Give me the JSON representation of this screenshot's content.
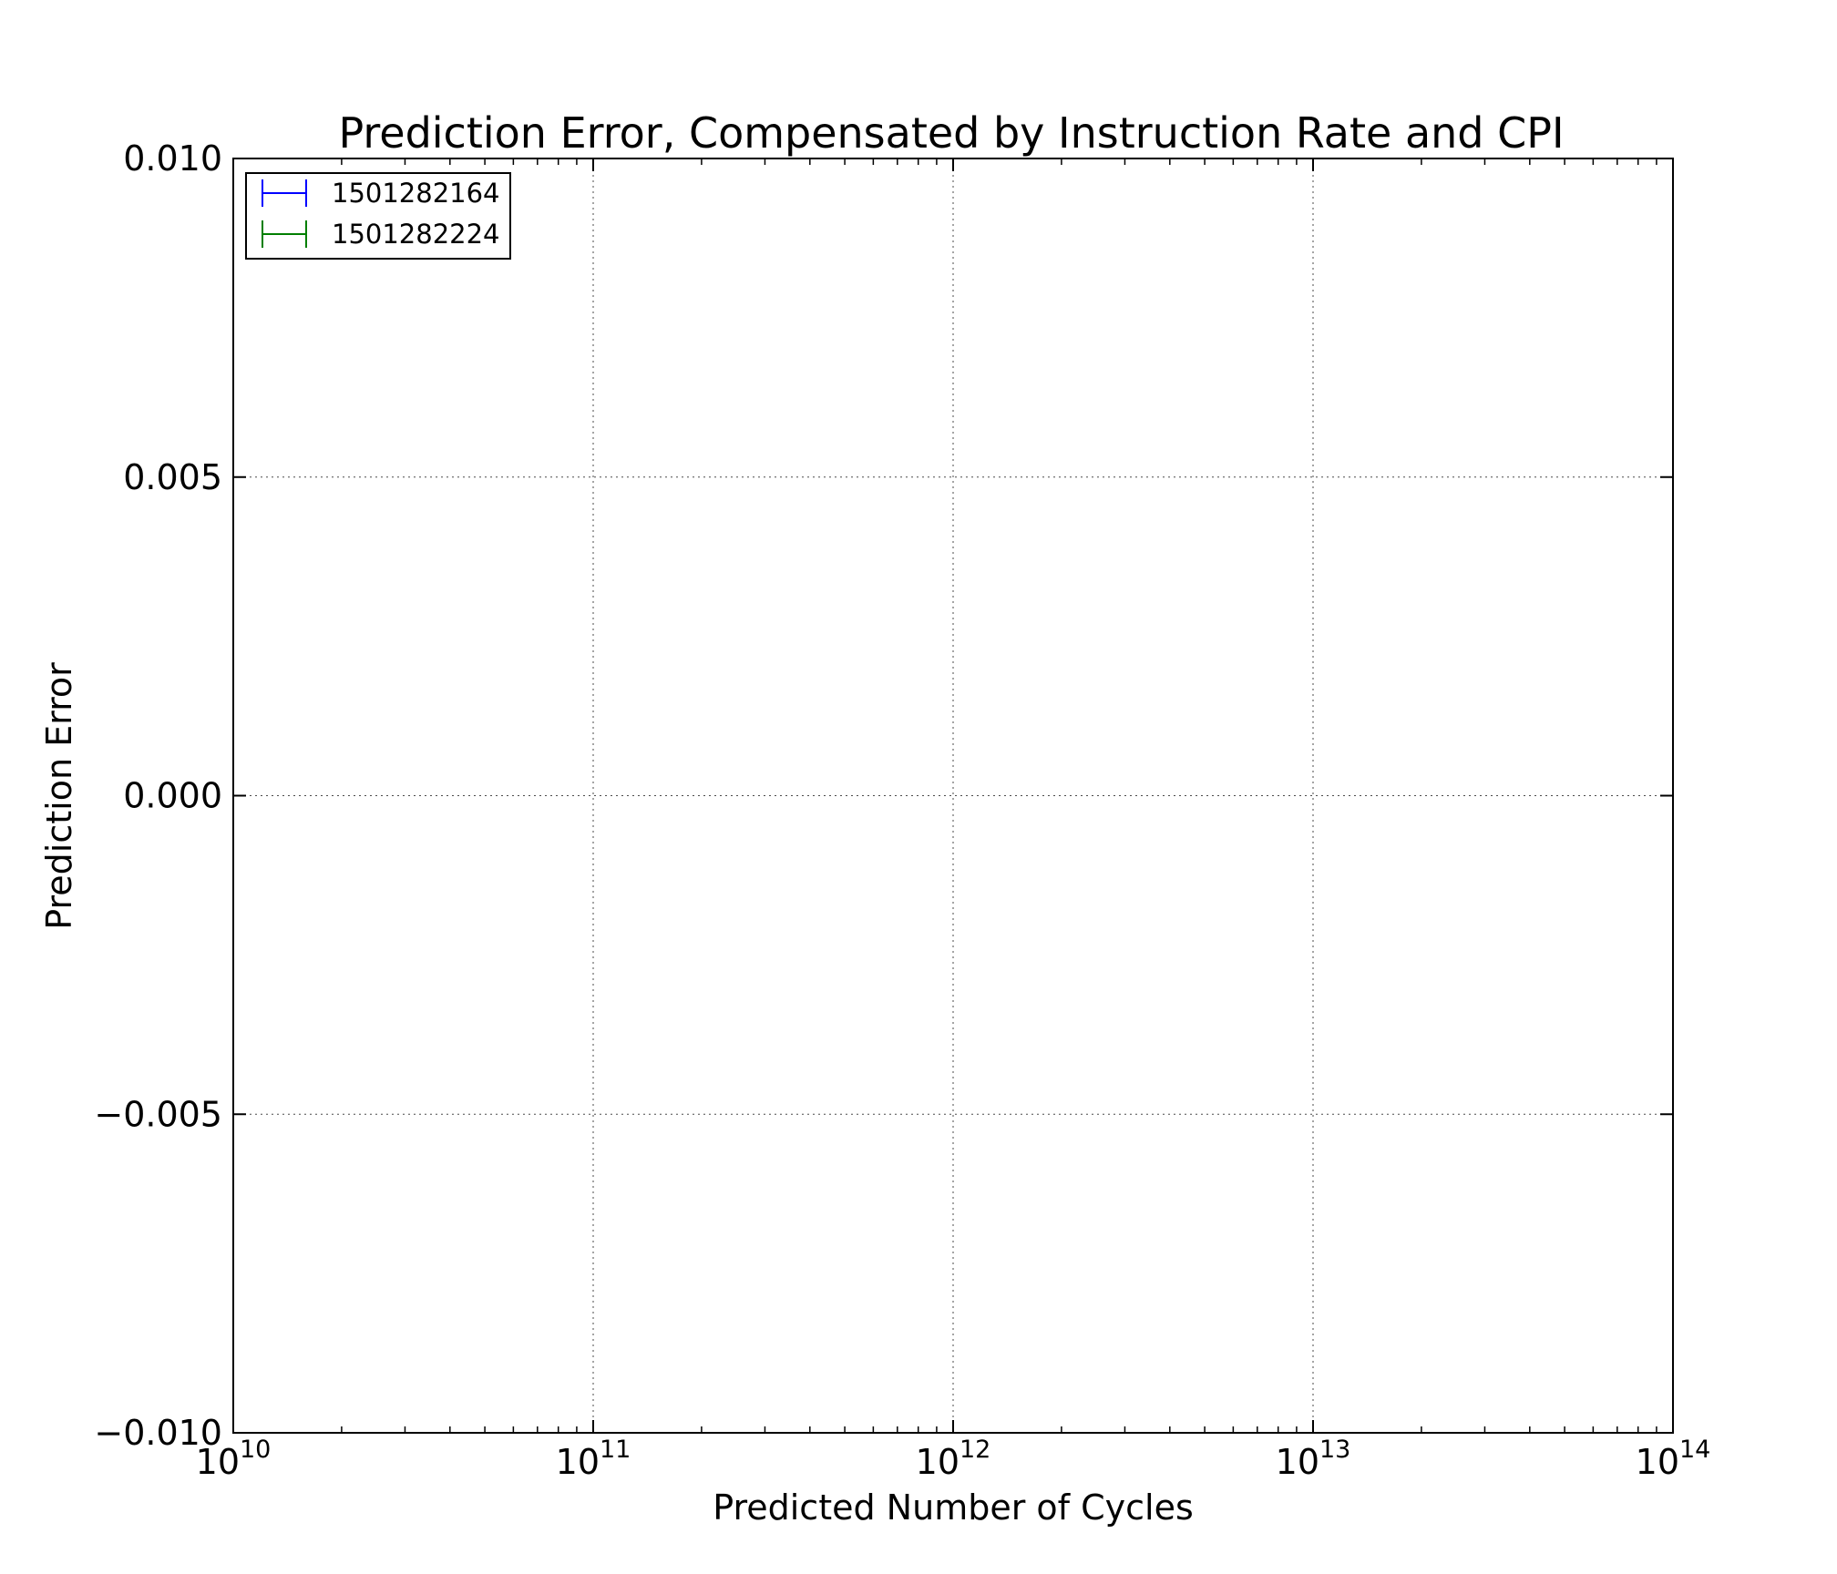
{
  "chart_data": {
    "type": "scatter",
    "title": "Prediction Error, Compensated by Instruction Rate and CPI",
    "xlabel": "Predicted Number of Cycles",
    "ylabel": "Prediction Error",
    "xscale": "log",
    "xlim": [
      10000000000.0,
      100000000000000.0
    ],
    "ylim": [
      -0.01,
      0.01
    ],
    "x_ticks": [
      {
        "base": "10",
        "exp": "10"
      },
      {
        "base": "10",
        "exp": "11"
      },
      {
        "base": "10",
        "exp": "12"
      },
      {
        "base": "10",
        "exp": "13"
      },
      {
        "base": "10",
        "exp": "14"
      }
    ],
    "y_ticks": [
      "0.010",
      "0.005",
      "0.000",
      "−0.005",
      "−0.010"
    ],
    "y_tick_values": [
      0.01,
      0.005,
      0.0,
      -0.005,
      -0.01
    ],
    "grid": true,
    "legend_position": "top-left",
    "legend": [
      {
        "label": "1501282164",
        "color": "#0000ff"
      },
      {
        "label": "1501282224",
        "color": "#007f00"
      }
    ],
    "series": [
      {
        "name": "1501282164",
        "color": "#0000ff",
        "x": [],
        "y": [],
        "yerr": []
      },
      {
        "name": "1501282224",
        "color": "#007f00",
        "x": [],
        "y": [],
        "yerr": []
      }
    ]
  }
}
